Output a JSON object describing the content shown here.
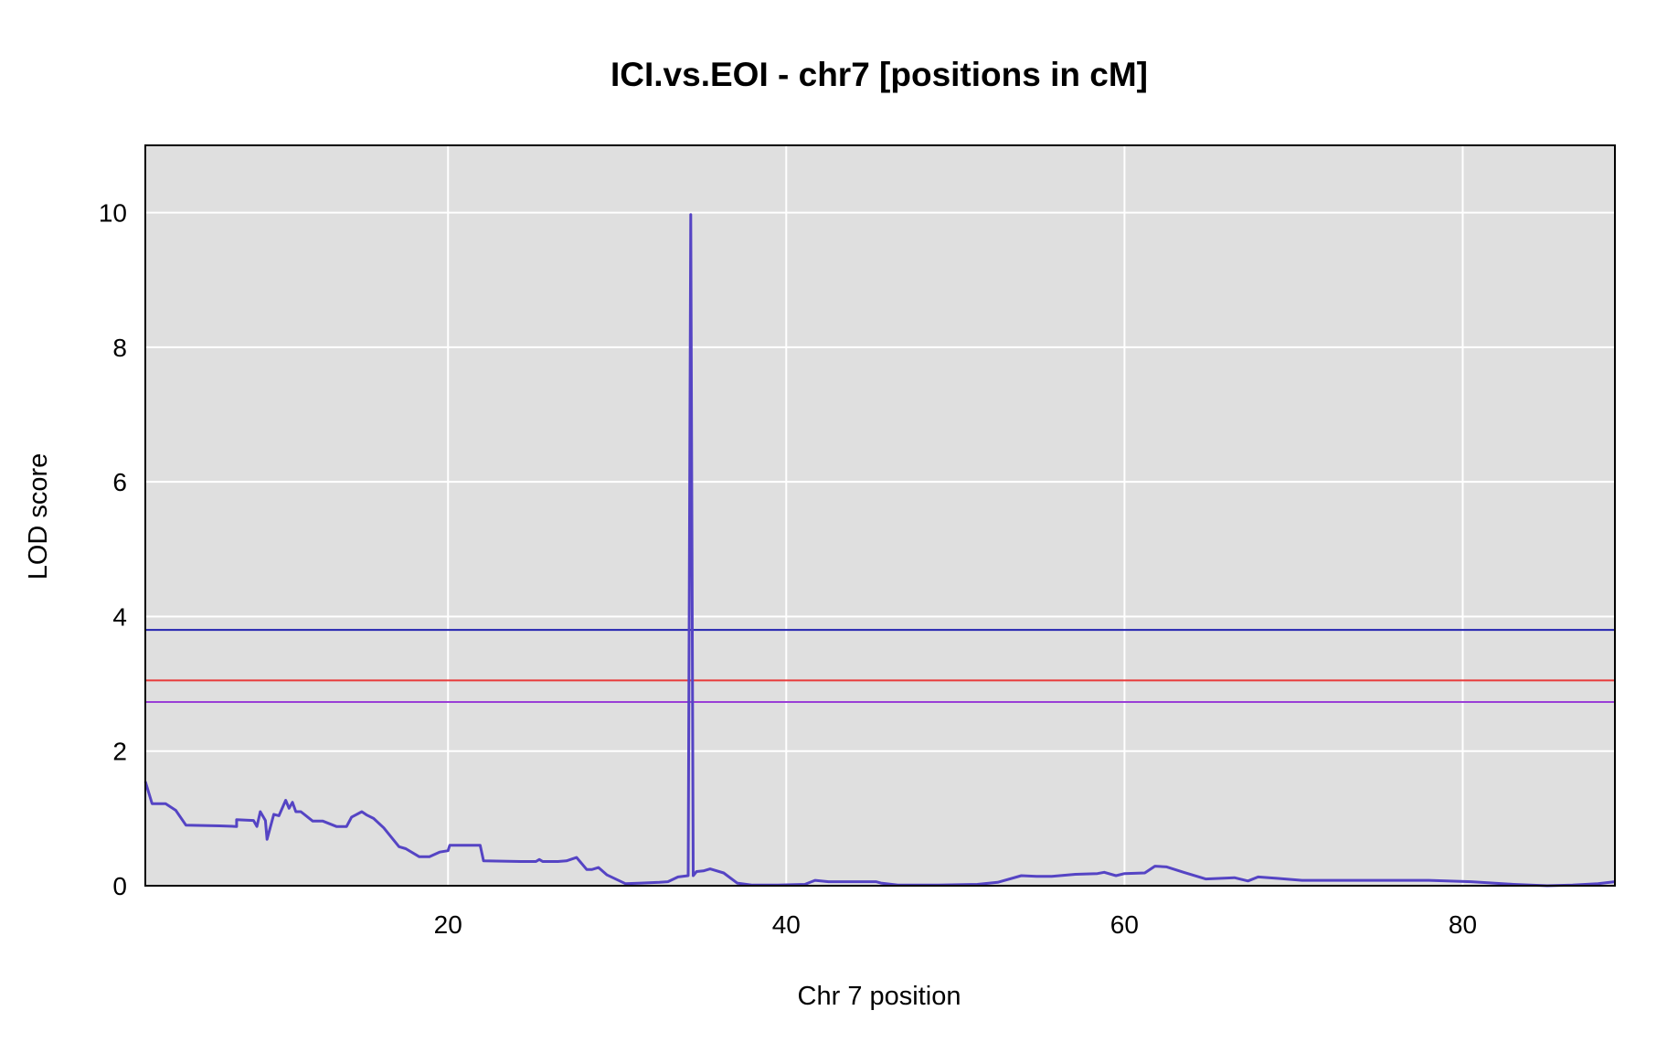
{
  "chart_data": {
    "type": "line",
    "title": "ICI.vs.EOI - chr7 [positions in cM]",
    "xlabel": "Chr 7 position",
    "ylabel": "LOD score",
    "xlim": [
      2.1,
      89.0
    ],
    "ylim": [
      0,
      11
    ],
    "xticks": [
      "20",
      "40",
      "60",
      "80"
    ],
    "xtick_values": [
      20,
      40,
      60,
      80
    ],
    "yticks": [
      "0",
      "2",
      "4",
      "6",
      "8",
      "10"
    ],
    "ytick_values": [
      0,
      2,
      4,
      6,
      8,
      10
    ],
    "grid": true,
    "colors": {
      "background": "#dfdfdf",
      "grid": "#ffffff",
      "series": "#5544c4"
    },
    "thresholds": [
      {
        "value": 3.8,
        "color": "#2323b0"
      },
      {
        "value": 3.05,
        "color": "#e83a3a"
      },
      {
        "value": 2.73,
        "color": "#9a3fd6"
      }
    ],
    "series": [
      {
        "x": [
          2.1,
          2.5,
          3.3,
          3.9,
          4.5,
          6.5,
          7.5,
          7.5,
          8.5,
          8.7,
          8.9,
          9.2,
          9.3,
          9.7,
          10.0,
          10.4,
          10.6,
          10.8,
          11.0,
          11.3,
          12.0,
          12.6,
          13.4,
          14.0,
          14.3,
          14.9,
          15.2,
          15.6,
          16.2,
          17.1,
          17.5,
          18.3,
          18.9,
          19.5,
          20.0,
          20.1,
          21.1,
          21.9,
          22.1,
          24.3,
          25.2,
          25.4,
          25.6,
          26.5,
          27.0,
          27.6,
          28.2,
          28.5,
          28.9,
          29.4,
          30.5,
          31.4,
          32.5,
          33.0,
          33.6,
          34.2,
          34.35,
          34.5,
          34.7,
          35.1,
          35.5,
          36.3,
          37.1,
          38.0,
          39.5,
          41.1,
          41.7,
          42.5,
          43.4,
          44.6,
          45.3,
          45.6,
          46.6,
          49.0,
          51.3,
          52.5,
          53.9,
          54.8,
          55.7,
          57.1,
          58.4,
          58.8,
          59.5,
          60.0,
          61.2,
          61.8,
          62.5,
          63.5,
          64.8,
          66.5,
          67.3,
          67.9,
          69.0,
          70.5,
          72.5,
          75.0,
          78.0,
          80.5,
          83.0,
          85.0,
          86.5,
          88.0,
          89.0
        ],
        "values": [
          1.55,
          1.22,
          1.22,
          1.12,
          0.9,
          0.89,
          0.88,
          0.98,
          0.97,
          0.88,
          1.1,
          0.97,
          0.69,
          1.06,
          1.04,
          1.27,
          1.15,
          1.24,
          1.1,
          1.1,
          0.96,
          0.96,
          0.88,
          0.88,
          1.02,
          1.1,
          1.05,
          1.0,
          0.86,
          0.58,
          0.55,
          0.43,
          0.43,
          0.5,
          0.52,
          0.6,
          0.6,
          0.6,
          0.37,
          0.36,
          0.36,
          0.39,
          0.36,
          0.36,
          0.37,
          0.42,
          0.24,
          0.24,
          0.27,
          0.16,
          0.03,
          0.04,
          0.05,
          0.06,
          0.13,
          0.15,
          9.97,
          0.15,
          0.21,
          0.22,
          0.25,
          0.19,
          0.04,
          0.01,
          0.01,
          0.02,
          0.08,
          0.06,
          0.06,
          0.06,
          0.06,
          0.04,
          0.01,
          0.01,
          0.02,
          0.05,
          0.15,
          0.14,
          0.14,
          0.17,
          0.18,
          0.2,
          0.15,
          0.18,
          0.19,
          0.29,
          0.28,
          0.2,
          0.1,
          0.12,
          0.07,
          0.13,
          0.11,
          0.08,
          0.08,
          0.08,
          0.08,
          0.06,
          0.02,
          0.0,
          0.01,
          0.03,
          0.06
        ]
      }
    ]
  }
}
